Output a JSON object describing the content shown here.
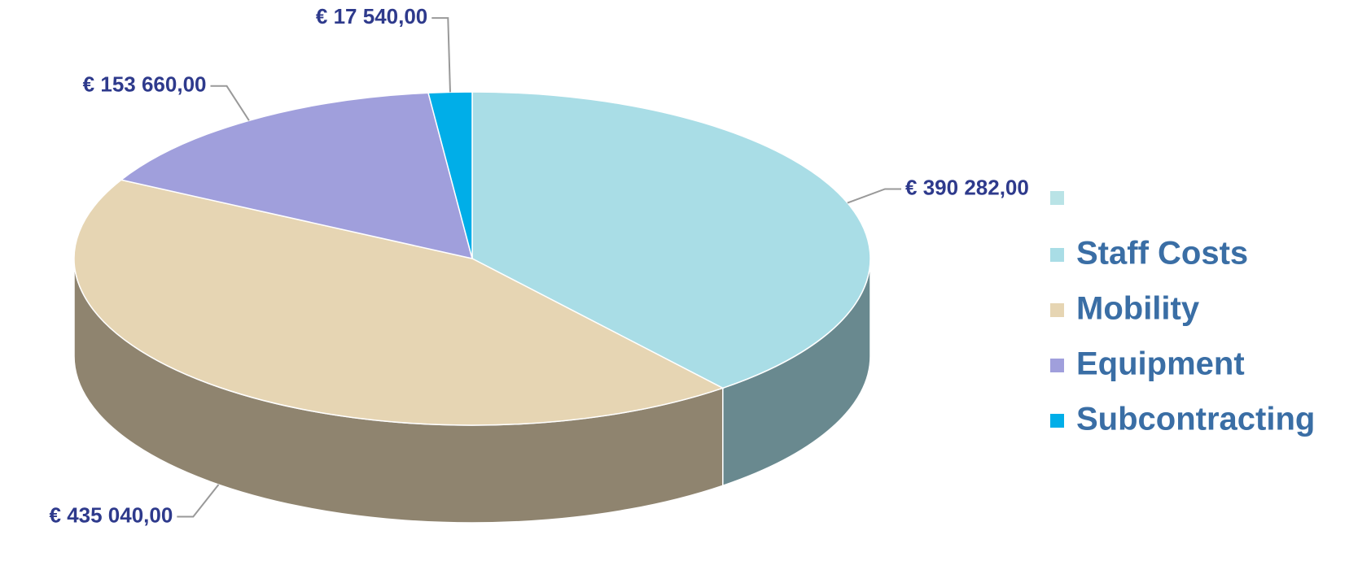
{
  "chart_data": {
    "type": "pie",
    "categories": [
      "Staff Costs",
      "Mobility",
      "Equipment",
      "Subcontracting"
    ],
    "values": [
      390282,
      435040,
      153660,
      17540
    ],
    "value_labels": [
      "€ 390 282,00",
      "€ 435 040,00",
      "€ 153 660,00",
      "€ 17 540,00"
    ],
    "colors": [
      "#a9dde6",
      "#e6d5b3",
      "#a09fdc",
      "#00aee8"
    ],
    "legend": "right"
  }
}
